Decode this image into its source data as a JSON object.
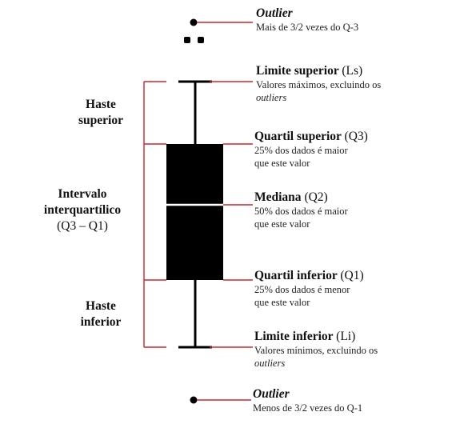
{
  "colors": {
    "leader": "#c8262b",
    "box": "#000000",
    "median": "#ffffff",
    "text": "#111111"
  },
  "outlier_top": {
    "title": "Outlier",
    "desc": "Mais de 3/2 vezes do Q-3"
  },
  "upper_limit": {
    "title": "Limite superior",
    "code": "(Ls)",
    "desc_line1": "Valores máximos, excluindo os",
    "desc_line2": "outliers"
  },
  "q3": {
    "title": "Quartil superior",
    "code": "(Q3)",
    "desc_line1": "25% dos dados é maior",
    "desc_line2": "que este valor"
  },
  "median": {
    "title": "Mediana",
    "code": "(Q2)",
    "desc_line1": "50% dos dados é maior",
    "desc_line2": "que este valor"
  },
  "q1": {
    "title": "Quartil inferior",
    "code": "(Q1)",
    "desc_line1": "25% dos dados é menor",
    "desc_line2": "que este valor"
  },
  "lower_limit": {
    "title": "Limite inferior",
    "code": "(Li)",
    "desc_line1": "Valores mínimos, excluindo os",
    "desc_line2": "outliers"
  },
  "outlier_bottom": {
    "title": "Outlier",
    "desc": "Menos de 3/2 vezes do Q-1"
  },
  "side": {
    "upper_whisker_line1": "Haste",
    "upper_whisker_line2": "superior",
    "iqr_line1": "Intervalo",
    "iqr_line2": "interquartílico",
    "iqr_line3": "(Q3 – Q1)",
    "lower_whisker_line1": "Haste",
    "lower_whisker_line2": "inferior"
  }
}
